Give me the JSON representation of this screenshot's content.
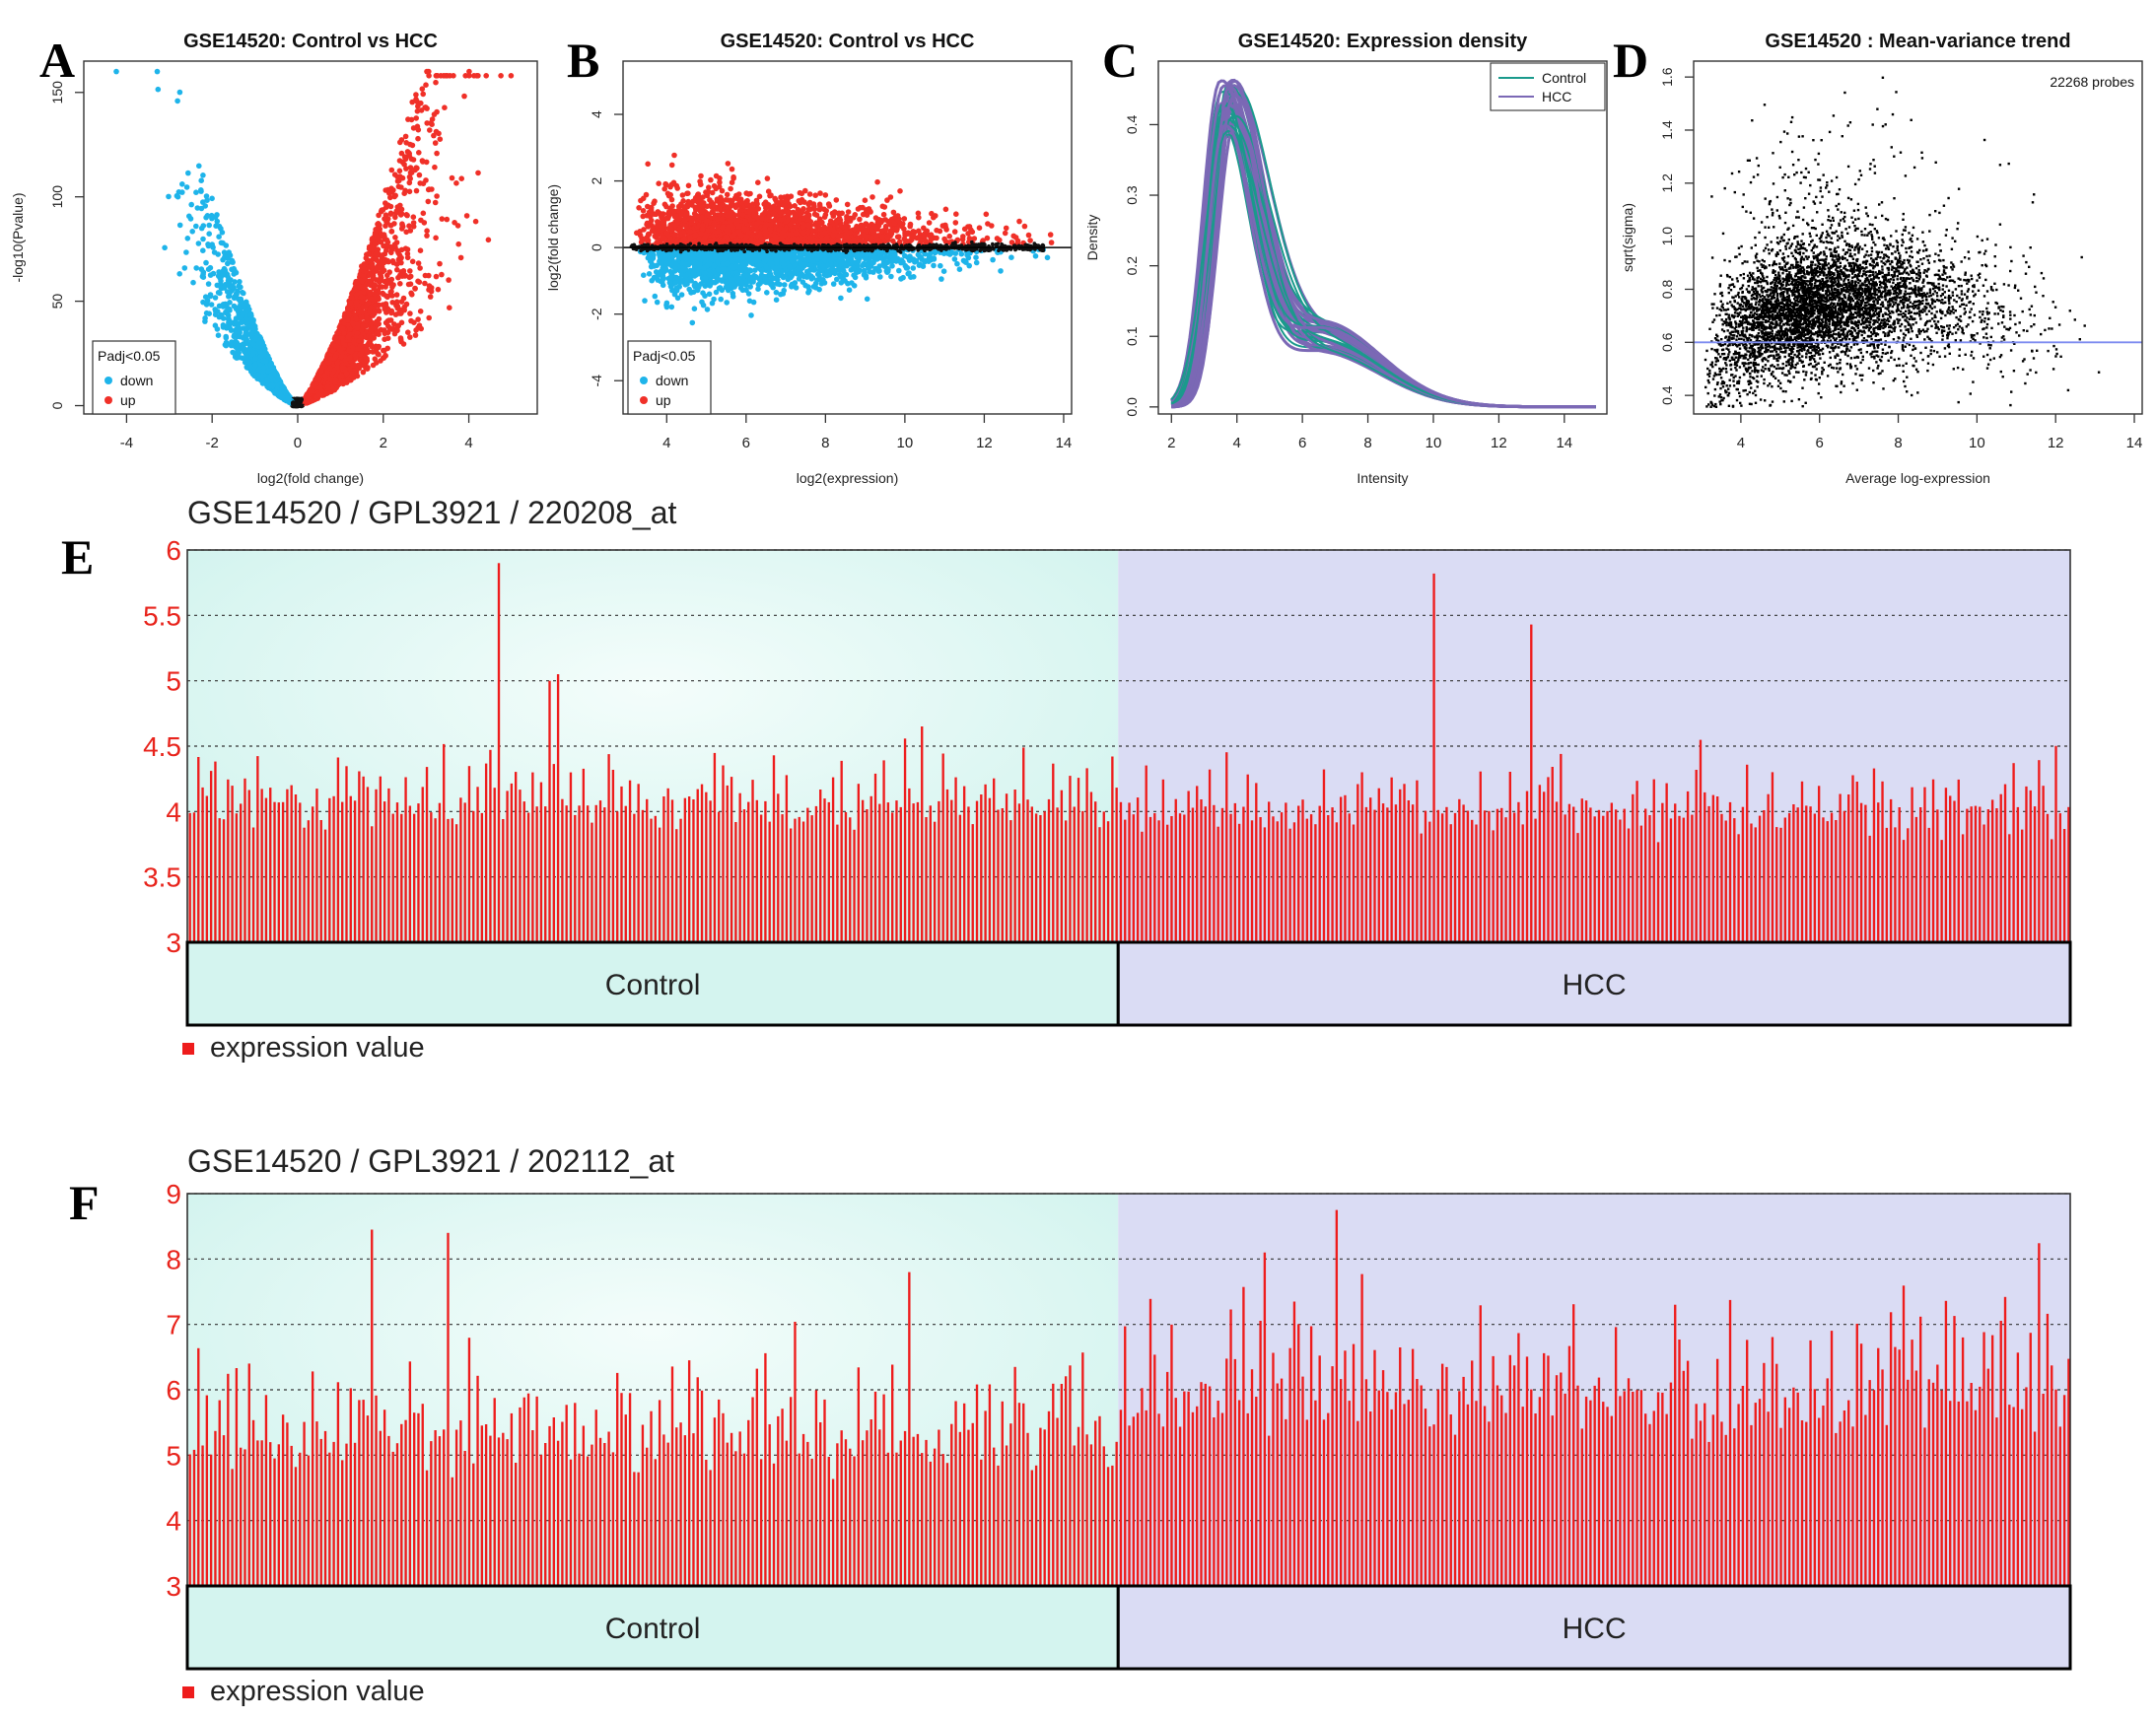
{
  "panel_letters": [
    "A",
    "B",
    "C",
    "D",
    "E",
    "F"
  ],
  "colors": {
    "down": "#1eb4ea",
    "up": "#f03028",
    "nonsig": "#111111",
    "control_line": "#1a9a8c",
    "hcc_line": "#7b68b5",
    "bar": "#ee1c1c",
    "ylab": "#e8241c",
    "control_bg": "#d4f4ef",
    "hcc_bg": "#dadcf4",
    "trend_line": "#7d8cf0"
  },
  "chart_data": [
    {
      "id": "A",
      "type": "scatter",
      "title": "GSE14520: Control vs HCC",
      "xlabel": "log2(fold change)",
      "ylabel": "-log10(Pvalue)",
      "xlim": [
        -5,
        5.6
      ],
      "ylim": [
        -4,
        165
      ],
      "xticks": [
        -4,
        -2,
        0,
        2,
        4
      ],
      "yticks": [
        0,
        50,
        100,
        150
      ],
      "legend": {
        "title": "Padj<0.05",
        "items": [
          "down",
          "up"
        ],
        "position": "bottom-left"
      }
    },
    {
      "id": "B",
      "type": "scatter",
      "title": "GSE14520: Control vs HCC",
      "xlabel": "log2(expression)",
      "ylabel": "log2(fold change)",
      "xlim": [
        2.9,
        14.2
      ],
      "ylim": [
        -5,
        5.6
      ],
      "xticks": [
        4,
        6,
        8,
        10,
        12,
        14
      ],
      "yticks": [
        -4,
        -2,
        0,
        2,
        4
      ],
      "legend": {
        "title": "Padj<0.05",
        "items": [
          "down",
          "up"
        ],
        "position": "bottom-left"
      }
    },
    {
      "id": "C",
      "type": "line",
      "title": "GSE14520: Expression density",
      "xlabel": "Intensity",
      "ylabel": "Density",
      "xlim": [
        1.6,
        15.3
      ],
      "ylim": [
        -0.01,
        0.49
      ],
      "xticks": [
        2,
        4,
        6,
        8,
        10,
        12,
        14
      ],
      "yticks": [
        0.0,
        0.1,
        0.2,
        0.3,
        0.4
      ],
      "legend": {
        "items": [
          "Control",
          "HCC"
        ],
        "position": "top-right"
      },
      "series": [
        {
          "name": "Control",
          "peak_x": 3.9,
          "peak_y": 0.45
        },
        {
          "name": "HCC",
          "peak_x": 3.8,
          "peak_y": 0.45
        }
      ]
    },
    {
      "id": "D",
      "type": "scatter",
      "title": "GSE14520 : Mean-variance trend",
      "xlabel": "Average log-expression",
      "ylabel": "sqrt(sigma)",
      "annotation": "22268 probes",
      "xlim": [
        2.8,
        14.2
      ],
      "ylim": [
        0.33,
        1.66
      ],
      "xticks": [
        4,
        6,
        8,
        10,
        12,
        14
      ],
      "yticks": [
        0.4,
        0.6,
        0.8,
        1.0,
        1.2,
        1.4,
        1.6
      ],
      "trend_y": 0.6
    },
    {
      "id": "E",
      "type": "bar",
      "title": "GSE14520 / GPL3921 / 220208_at",
      "ylim": [
        3,
        6
      ],
      "yticks": [
        "3",
        "3.5",
        "4",
        "4.5",
        "5",
        "5.5",
        "6"
      ],
      "groups": [
        {
          "name": "Control",
          "n": 220
        },
        {
          "name": "HCC",
          "n": 225
        }
      ],
      "legend": "expression value",
      "peaks": [
        {
          "group": "Control",
          "index": 73,
          "value": 5.9
        },
        {
          "group": "Control",
          "index": 87,
          "value": 5.05
        },
        {
          "group": "Control",
          "index": 85,
          "value": 5.0
        },
        {
          "group": "HCC",
          "index": 74,
          "value": 5.82
        },
        {
          "group": "HCC",
          "index": 97,
          "value": 5.43
        }
      ]
    },
    {
      "id": "F",
      "type": "bar",
      "title": "GSE14520 / GPL3921 / 202112_at",
      "ylim": [
        3,
        9
      ],
      "yticks": [
        "3",
        "4",
        "5",
        "6",
        "7",
        "8",
        "9"
      ],
      "groups": [
        {
          "name": "Control",
          "n": 220
        },
        {
          "name": "HCC",
          "n": 225
        }
      ],
      "legend": "expression value",
      "peaks": [
        {
          "group": "Control",
          "index": 43,
          "value": 8.45
        },
        {
          "group": "Control",
          "index": 61,
          "value": 8.4
        },
        {
          "group": "Control",
          "index": 170,
          "value": 7.8
        },
        {
          "group": "HCC",
          "index": 51,
          "value": 8.75
        },
        {
          "group": "HCC",
          "index": 34,
          "value": 8.1
        }
      ]
    }
  ]
}
